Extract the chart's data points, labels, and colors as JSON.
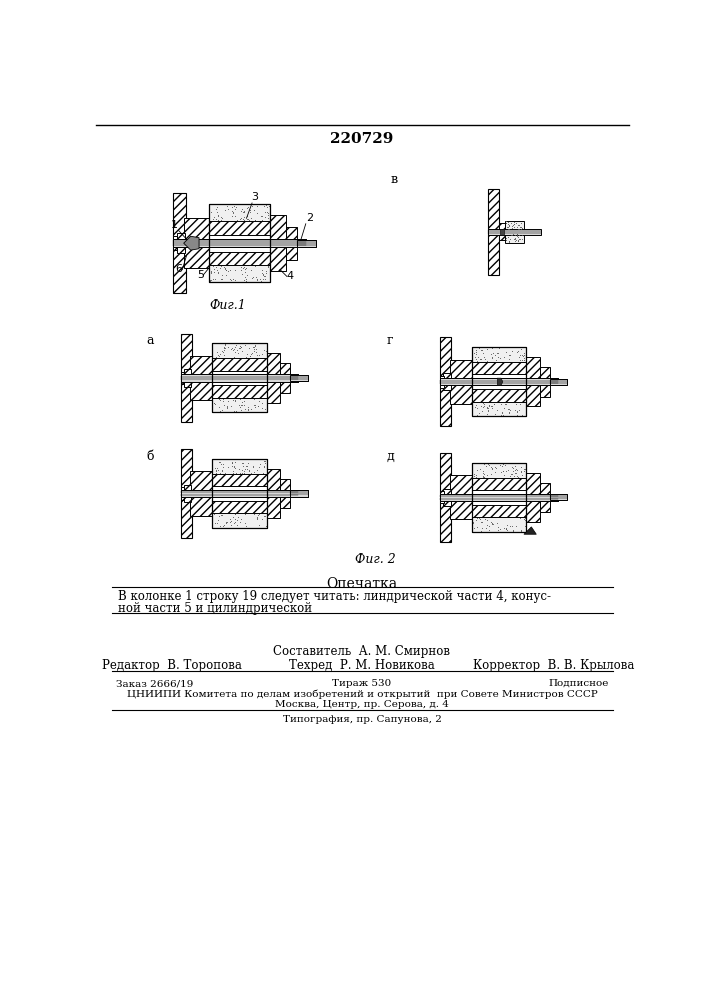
{
  "patent_number": "220729",
  "fig1_label": "Фиг.1",
  "fig2_label": "Фиг. 2",
  "fig_a_label": "а",
  "fig_b_label": "б",
  "fig_v_label": "в",
  "fig_g_label": "г",
  "fig_d_label": "д",
  "opechatka_title": "Опечатка",
  "opechatka_text1": "В колонке 1 строку 19 следует читать: линдрической части 4, конус-",
  "opechatka_text2": "ной части 5 и цилиндрической",
  "sostavitel": "Составитель  А. М. Смирнов",
  "redaktor": "Редактор  В. Торопова",
  "tehred": "Техред  Р. М. Новикова",
  "korrektor": "Корректор  В. В. Крылова",
  "zakaz": "Заказ 2666/19",
  "tirazh": "Тираж 530",
  "podpisnoe": "Подписное",
  "tsniinpi": "ЦНИИПИ Комитета по делам изобретений и открытий  при Совете Министров СССР",
  "moskva": "Москва, Центр, пр. Серова, д. 4",
  "tipografiya": "Типография, пр. Сапунова, 2",
  "bg_color": "#ffffff",
  "text_color": "#000000"
}
